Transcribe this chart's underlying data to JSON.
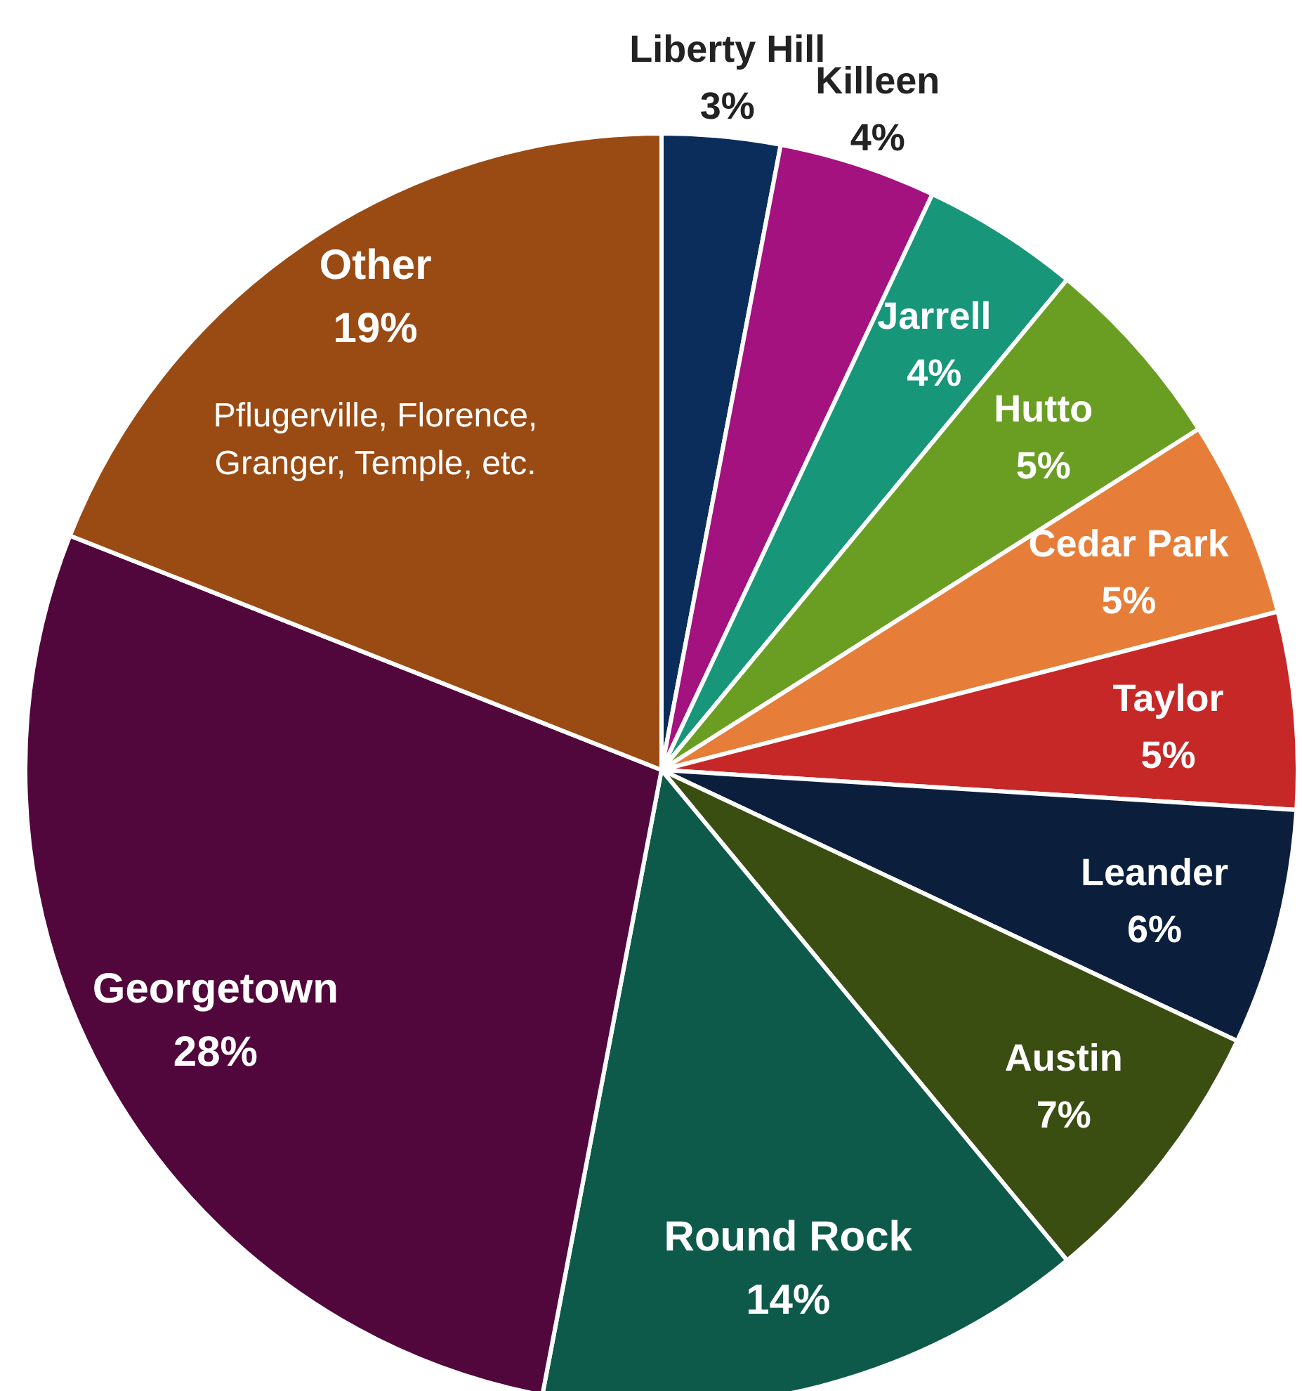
{
  "chart_data": {
    "type": "pie",
    "categories": [
      "Liberty Hill",
      "Killeen",
      "Jarrell",
      "Hutto",
      "Cedar Park",
      "Taylor",
      "Leander",
      "Austin",
      "Round Rock",
      "Georgetown",
      "Other"
    ],
    "values": [
      3,
      4,
      4,
      5,
      5,
      5,
      6,
      7,
      14,
      28,
      19
    ],
    "value_labels": [
      "3%",
      "4%",
      "4%",
      "5%",
      "5%",
      "5%",
      "6%",
      "7%",
      "14%",
      "28%",
      "19%"
    ],
    "colors": [
      "#0b2d5c",
      "#a3127f",
      "#17967a",
      "#6a9e23",
      "#e67e3a",
      "#c62828",
      "#0b1f3d",
      "#3b4e12",
      "#0e5a4a",
      "#52073c",
      "#9a4a13"
    ],
    "annotations": [
      {
        "text": "Pflugerville, Florence, Granger, Temple, etc.",
        "x": "Other"
      }
    ],
    "legend": false
  }
}
